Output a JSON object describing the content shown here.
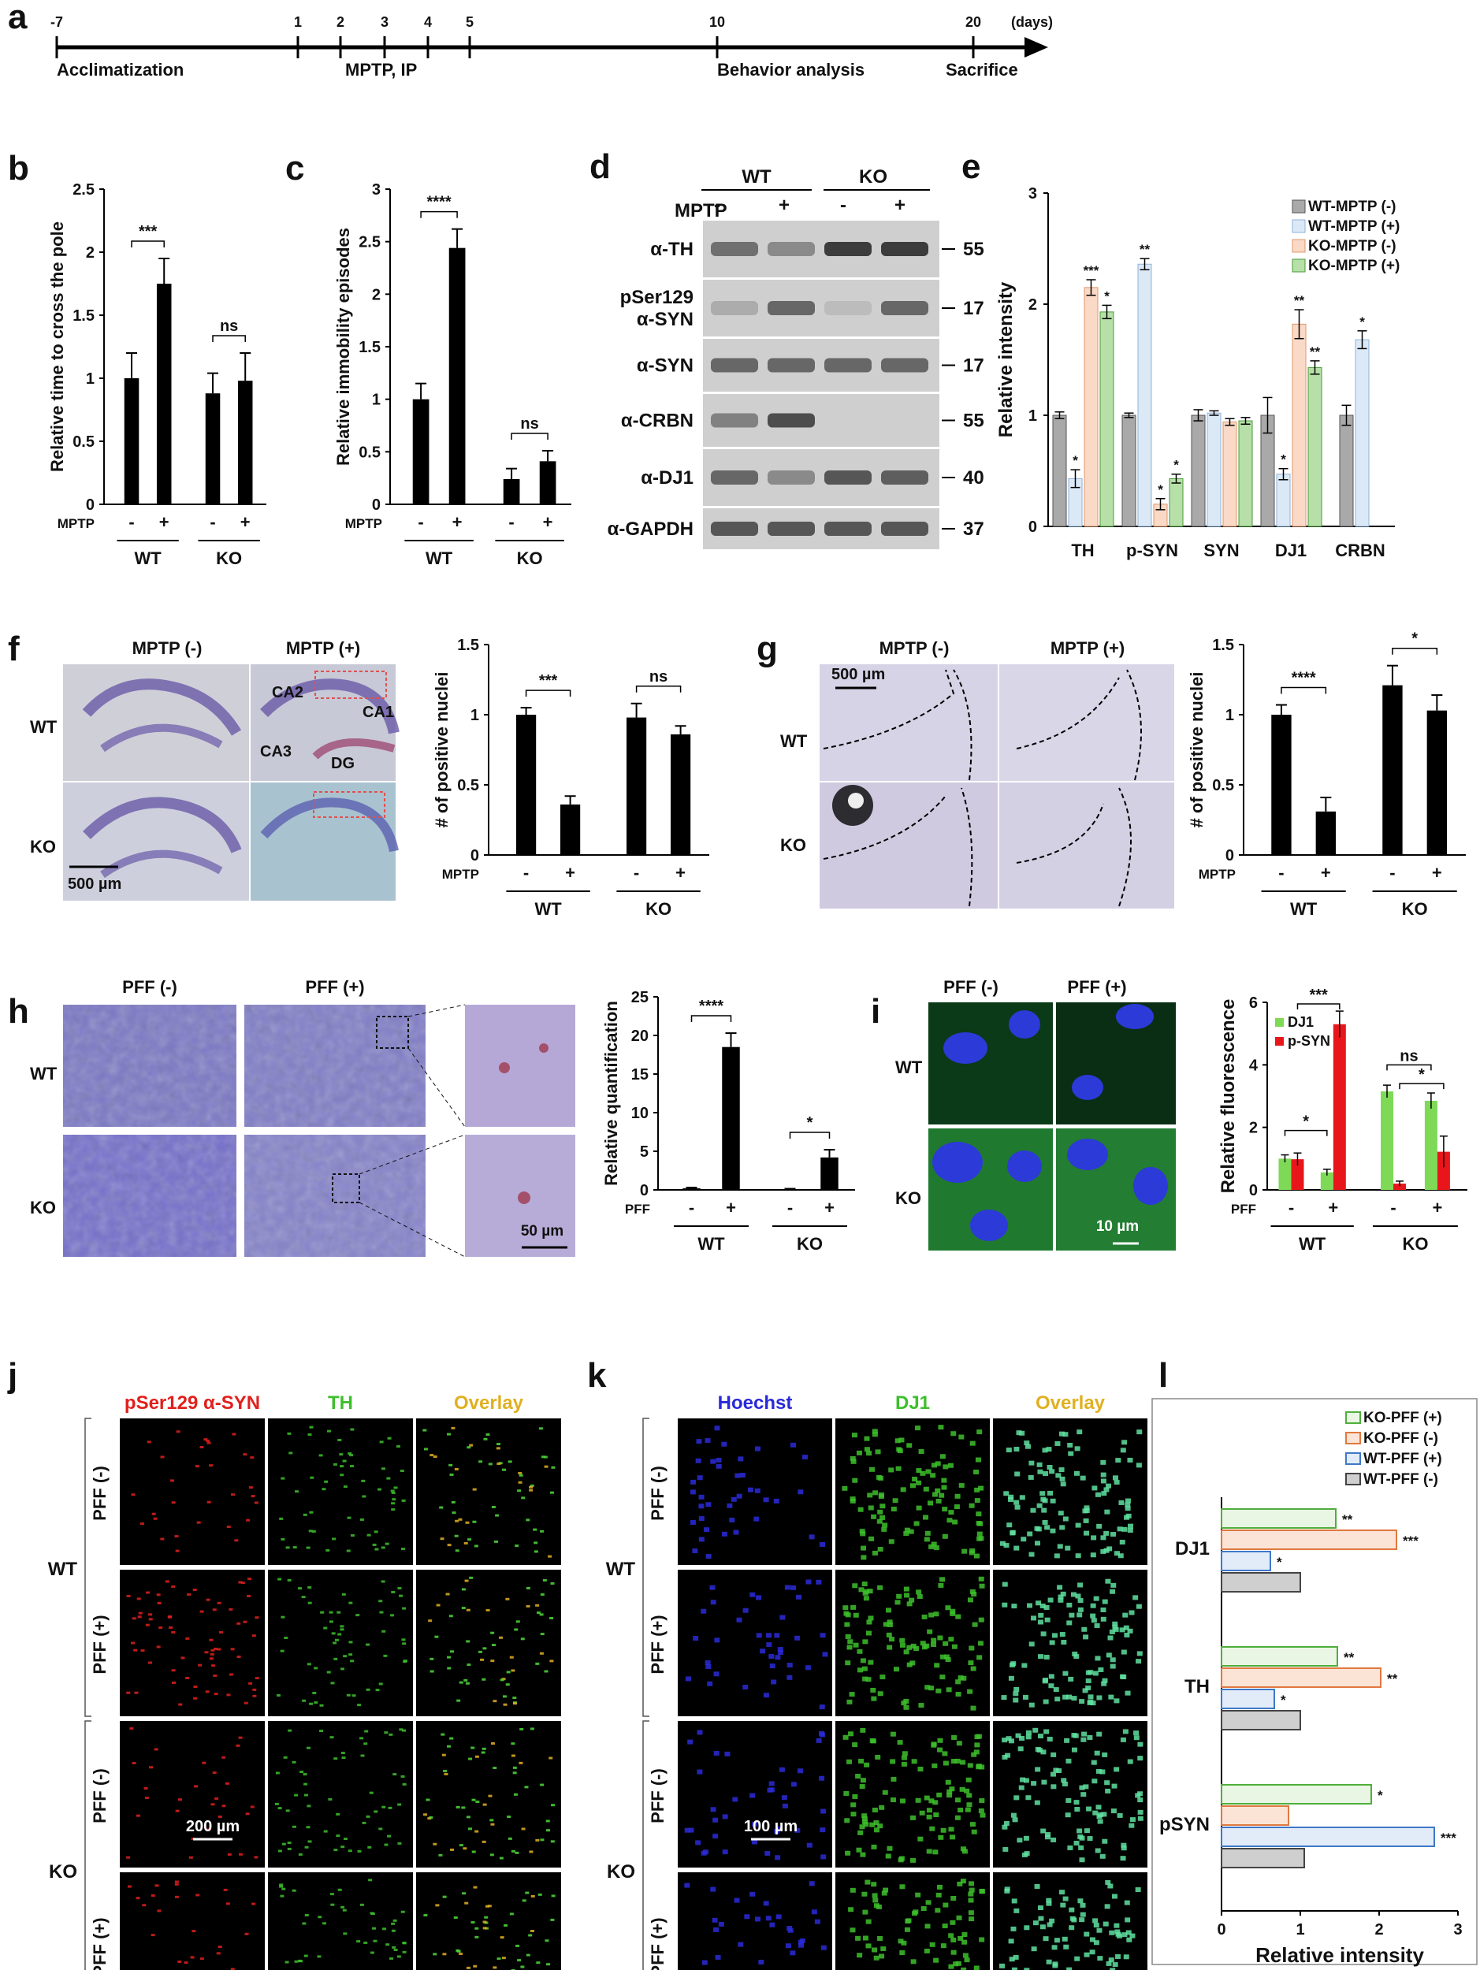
{
  "panel_letters": {
    "a": "a",
    "b": "b",
    "c": "c",
    "d": "d",
    "e": "e",
    "f": "f",
    "g": "g",
    "h": "h",
    "i": "i",
    "j": "j",
    "k": "k",
    "l": "l"
  },
  "timeline": {
    "days": [
      "-7",
      "1",
      "2",
      "3",
      "4",
      "5",
      "10",
      "20"
    ],
    "days_unit": "(days)",
    "labels": {
      "acclimatization": "Acclimatization",
      "mptp": "MPTP, IP",
      "behavior": "Behavior analysis",
      "sacrifice": "Sacrifice"
    }
  },
  "common": {
    "mptp": "MPTP",
    "pff": "PFF",
    "minus": "-",
    "plus": "+",
    "wt": "WT",
    "ko": "KO",
    "ns": "ns"
  },
  "images": {
    "f": {
      "col_minus": "MPTP (-)",
      "col_plus": "MPTP (+)",
      "row_wt": "WT",
      "row_ko": "KO",
      "scale": "500 µm",
      "regions": {
        "ca2": "CA2",
        "ca1": "CA1",
        "ca3": "CA3",
        "dg": "DG"
      }
    },
    "g": {
      "col_minus": "MPTP (-)",
      "col_plus": "MPTP (+)",
      "row_wt": "WT",
      "row_ko": "KO",
      "scale": "500 µm"
    },
    "h": {
      "col_minus": "PFF (-)",
      "col_plus": "PFF (+)",
      "row_wt": "WT",
      "row_ko": "KO",
      "scale": "50 µm"
    },
    "i": {
      "col_minus": "PFF (-)",
      "col_plus": "PFF (+)",
      "row_wt": "WT",
      "row_ko": "KO",
      "scale": "10 µm"
    },
    "j": {
      "cols": [
        "pSer129 α-SYN",
        "TH",
        "Overlay"
      ],
      "rows": [
        "PFF (-)",
        "PFF (+)",
        "PFF (-)",
        "PFF (+)"
      ],
      "groups": [
        "WT",
        "KO"
      ],
      "scale": "200 µm",
      "col_colors": [
        "#e0201c",
        "#3dbf2b",
        "#e0b021"
      ]
    },
    "k": {
      "cols": [
        "Hoechst",
        "DJ1",
        "Overlay"
      ],
      "rows": [
        "PFF (-)",
        "PFF (+)",
        "PFF (-)",
        "PFF (+)"
      ],
      "groups": [
        "WT",
        "KO"
      ],
      "scale": "100 µm",
      "col_colors": [
        "#2a2ad8",
        "#3dbf2b",
        "#e0b021"
      ]
    }
  },
  "western": {
    "groups": [
      "WT",
      "KO"
    ],
    "mptp_label": "MPTP",
    "lanes": [
      "-",
      "+",
      "-",
      "+"
    ],
    "rows": [
      {
        "antibody": "α-TH",
        "kda": "55"
      },
      {
        "antibody": "pSer129 α-SYN",
        "kda": "17"
      },
      {
        "antibody": "α-SYN",
        "kda": "17"
      },
      {
        "antibody": "α-CRBN",
        "kda": "55"
      },
      {
        "antibody": "α-DJ1",
        "kda": "40"
      },
      {
        "antibody": "α-GAPDH",
        "kda": "37"
      }
    ]
  },
  "chart_data": [
    {
      "id": "b",
      "type": "bar",
      "categories": [
        "WT -",
        "WT +",
        "KO -",
        "KO +"
      ],
      "values": [
        1.0,
        1.75,
        0.88,
        0.98
      ],
      "errors": [
        0.2,
        0.2,
        0.16,
        0.22
      ],
      "ylabel": "Relative time to cross the pole",
      "ylim": [
        0,
        2.5
      ],
      "yticks": [
        "0",
        "0.5",
        "1",
        "1.5",
        "2",
        "2.5"
      ],
      "significance": [
        {
          "pair": [
            0,
            1
          ],
          "label": "***"
        },
        {
          "pair": [
            2,
            3
          ],
          "label": "ns"
        }
      ],
      "color": "#000000"
    },
    {
      "id": "c",
      "type": "bar",
      "categories": [
        "WT -",
        "WT +",
        "KO -",
        "KO +"
      ],
      "values": [
        1.0,
        2.44,
        0.24,
        0.41
      ],
      "errors": [
        0.15,
        0.18,
        0.1,
        0.1
      ],
      "ylabel": "Relative immobility episodes",
      "ylim": [
        0,
        3
      ],
      "yticks": [
        "0",
        "0.5",
        "1",
        "1.5",
        "2",
        "2.5",
        "3"
      ],
      "significance": [
        {
          "pair": [
            0,
            1
          ],
          "label": "****"
        },
        {
          "pair": [
            2,
            3
          ],
          "label": "ns"
        }
      ],
      "color": "#000000"
    },
    {
      "id": "e",
      "type": "bar",
      "categories": [
        "TH",
        "p-SYN",
        "SYN",
        "DJ1",
        "CRBN"
      ],
      "ylabel": "Relative intensity",
      "ylim": [
        0,
        3
      ],
      "yticks": [
        "0",
        "1",
        "2",
        "3"
      ],
      "legend": "top-right",
      "series": [
        {
          "name": "WT-MPTP (-)",
          "fill": "#a9a9a9",
          "stroke": "#555555",
          "values": [
            1.0,
            1.0,
            1.0,
            1.0,
            1.0
          ],
          "errors": [
            0.03,
            0.02,
            0.05,
            0.16,
            0.09
          ],
          "stars": [
            "",
            "",
            "",
            "",
            ""
          ]
        },
        {
          "name": "WT-MPTP (+)",
          "fill": "#dbe9f7",
          "stroke": "#8fb3d9",
          "values": [
            0.43,
            2.36,
            1.02,
            0.47,
            1.68
          ],
          "errors": [
            0.08,
            0.05,
            0.02,
            0.05,
            0.08
          ],
          "stars": [
            "*",
            "**",
            "",
            "*",
            "*"
          ]
        },
        {
          "name": "KO-MPTP (-)",
          "fill": "#fad9c6",
          "stroke": "#e0976b",
          "values": [
            2.15,
            0.2,
            0.94,
            1.82,
            null
          ],
          "errors": [
            0.07,
            0.05,
            0.03,
            0.13,
            null
          ],
          "stars": [
            "***",
            "*",
            "",
            "**",
            ""
          ]
        },
        {
          "name": "KO-MPTP (+)",
          "fill": "#b6e0a8",
          "stroke": "#4a9a3a",
          "values": [
            1.93,
            0.43,
            0.95,
            1.43,
            null
          ],
          "errors": [
            0.06,
            0.04,
            0.03,
            0.06,
            null
          ],
          "stars": [
            "*",
            "*",
            "",
            "**",
            ""
          ]
        }
      ]
    },
    {
      "id": "f",
      "type": "bar",
      "categories": [
        "WT -",
        "WT +",
        "KO -",
        "KO +"
      ],
      "values": [
        1.0,
        0.36,
        0.98,
        0.86
      ],
      "errors": [
        0.05,
        0.06,
        0.1,
        0.06
      ],
      "ylabel": "# of positive nuclei",
      "ylim": [
        0,
        1.5
      ],
      "yticks": [
        "0",
        "0.5",
        "1",
        "1.5"
      ],
      "significance": [
        {
          "pair": [
            0,
            1
          ],
          "label": "***"
        },
        {
          "pair": [
            2,
            3
          ],
          "label": "ns"
        }
      ],
      "color": "#000000"
    },
    {
      "id": "g",
      "type": "bar",
      "categories": [
        "WT -",
        "WT +",
        "KO -",
        "KO +"
      ],
      "values": [
        1.0,
        0.31,
        1.21,
        1.03
      ],
      "errors": [
        0.07,
        0.1,
        0.14,
        0.11
      ],
      "ylabel": "# of positive nuclei",
      "ylim": [
        0,
        1.5
      ],
      "yticks": [
        "0",
        "0.5",
        "1",
        "1.5"
      ],
      "significance": [
        {
          "pair": [
            0,
            1
          ],
          "label": "****"
        },
        {
          "pair": [
            2,
            3
          ],
          "label": "*"
        }
      ],
      "color": "#000000"
    },
    {
      "id": "h",
      "type": "bar",
      "categories": [
        "WT -",
        "WT +",
        "KO -",
        "KO +"
      ],
      "values": [
        0.2,
        18.5,
        0.1,
        4.2
      ],
      "errors": [
        0.1,
        1.8,
        0.05,
        1.0
      ],
      "ylabel": "Relative quantification",
      "ylim": [
        0,
        25
      ],
      "yticks": [
        "0",
        "5",
        "10",
        "15",
        "20",
        "25"
      ],
      "significance": [
        {
          "pair": [
            0,
            1
          ],
          "label": "****"
        },
        {
          "pair": [
            2,
            3
          ],
          "label": "*"
        }
      ],
      "color": "#000000"
    },
    {
      "id": "i",
      "type": "bar",
      "categories": [
        "WT -",
        "WT +",
        "KO -",
        "KO +"
      ],
      "ylabel": "Relative fluorescence",
      "ylim": [
        0,
        6
      ],
      "yticks": [
        "0",
        "2",
        "4",
        "6"
      ],
      "legend": "top-left",
      "series": [
        {
          "name": "DJ1",
          "fill": "#7ed957",
          "values": [
            1.0,
            0.56,
            3.15,
            2.85
          ],
          "errors": [
            0.12,
            0.1,
            0.2,
            0.25
          ]
        },
        {
          "name": "p-SYN",
          "fill": "#e8161b",
          "values": [
            0.98,
            5.3,
            0.2,
            1.22
          ],
          "errors": [
            0.2,
            0.42,
            0.08,
            0.5
          ]
        }
      ],
      "significance": [
        {
          "label": "*"
        },
        {
          "label": "***"
        },
        {
          "label": "ns"
        },
        {
          "label": "*"
        }
      ]
    },
    {
      "id": "l",
      "type": "bar",
      "orientation": "horizontal",
      "categories": [
        "DJ1",
        "TH",
        "pSYN"
      ],
      "xlabel": "Relative intensity",
      "xlim": [
        0,
        3
      ],
      "xticks": [
        "0",
        "1",
        "2",
        "3"
      ],
      "legend": "top-right",
      "series": [
        {
          "name": "KO-PFF (+)",
          "stroke": "#4fae3c",
          "fill": "#eaf6e4",
          "values": [
            1.45,
            1.47,
            1.9
          ],
          "stars": [
            "**",
            "**",
            "*"
          ]
        },
        {
          "name": "KO-PFF (-)",
          "stroke": "#e0783f",
          "fill": "#fbe4d6",
          "values": [
            2.22,
            2.02,
            0.85
          ],
          "stars": [
            "***",
            "**",
            ""
          ]
        },
        {
          "name": "WT-PFF (+)",
          "stroke": "#3f78c8",
          "fill": "#e2ecf8",
          "values": [
            0.62,
            0.67,
            2.7
          ],
          "stars": [
            "*",
            "*",
            "***"
          ]
        },
        {
          "name": "WT-PFF (-)",
          "stroke": "#444444",
          "fill": "#cfcfcf",
          "values": [
            1.0,
            1.0,
            1.05
          ],
          "stars": [
            "",
            "",
            ""
          ]
        }
      ]
    }
  ]
}
